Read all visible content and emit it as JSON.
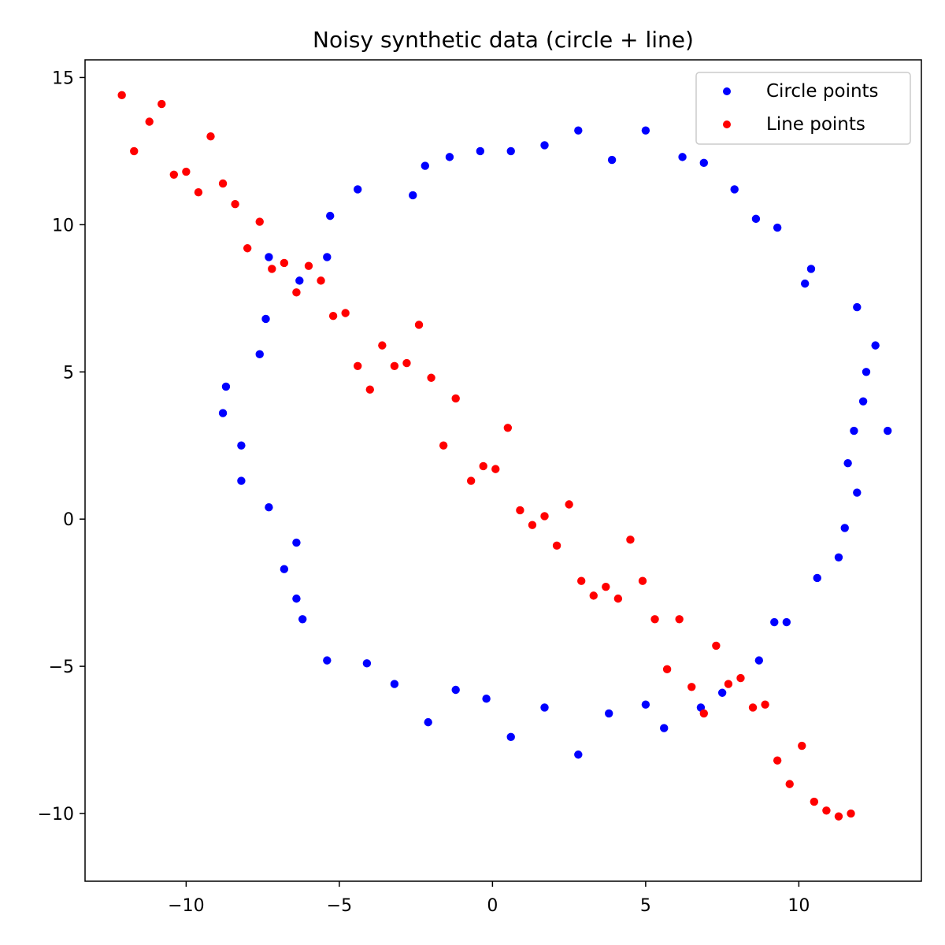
{
  "chart_data": {
    "type": "scatter",
    "title": "Noisy synthetic data (circle + line)",
    "xlabel": "",
    "ylabel": "",
    "xlim": [
      -13.3,
      14.0
    ],
    "ylim": [
      -12.3,
      15.6
    ],
    "xticks": [
      -10,
      -5,
      0,
      5,
      10
    ],
    "yticks": [
      -10,
      -5,
      0,
      5,
      10,
      15
    ],
    "xtick_labels": [
      "−10",
      "−5",
      "0",
      "5",
      "10"
    ],
    "ytick_labels": [
      "−10",
      "−5",
      "0",
      "5",
      "10",
      "15"
    ],
    "grid": false,
    "legend_position": "top-right",
    "series": [
      {
        "name": "Circle points",
        "color": "#0000ff",
        "points": [
          [
            12.9,
            3.0
          ],
          [
            12.5,
            5.9
          ],
          [
            12.2,
            5.0
          ],
          [
            12.1,
            4.0
          ],
          [
            11.9,
            7.2
          ],
          [
            11.8,
            3.0
          ],
          [
            11.9,
            0.9
          ],
          [
            11.6,
            1.9
          ],
          [
            11.5,
            -0.3
          ],
          [
            11.3,
            -1.3
          ],
          [
            10.6,
            -2.0
          ],
          [
            10.4,
            8.5
          ],
          [
            10.2,
            8.0
          ],
          [
            9.3,
            9.9
          ],
          [
            8.6,
            10.2
          ],
          [
            7.9,
            11.2
          ],
          [
            6.9,
            12.1
          ],
          [
            6.2,
            12.3
          ],
          [
            5.0,
            13.2
          ],
          [
            3.9,
            12.2
          ],
          [
            2.8,
            13.2
          ],
          [
            1.7,
            12.7
          ],
          [
            0.6,
            12.5
          ],
          [
            -0.4,
            12.5
          ],
          [
            -1.4,
            12.3
          ],
          [
            -2.2,
            12.0
          ],
          [
            -2.6,
            11.0
          ],
          [
            -4.4,
            11.2
          ],
          [
            -5.3,
            10.3
          ],
          [
            -5.4,
            8.9
          ],
          [
            -6.3,
            8.1
          ],
          [
            -7.3,
            8.9
          ],
          [
            -7.4,
            6.8
          ],
          [
            -7.6,
            5.6
          ],
          [
            -8.7,
            4.5
          ],
          [
            -8.8,
            3.6
          ],
          [
            -8.2,
            2.5
          ],
          [
            -8.2,
            1.3
          ],
          [
            -7.3,
            0.4
          ],
          [
            -6.4,
            -0.8
          ],
          [
            -6.8,
            -1.7
          ],
          [
            -6.4,
            -2.7
          ],
          [
            -6.2,
            -3.4
          ],
          [
            -5.4,
            -4.8
          ],
          [
            -4.1,
            -4.9
          ],
          [
            -3.2,
            -5.6
          ],
          [
            -2.1,
            -6.9
          ],
          [
            -1.2,
            -5.8
          ],
          [
            -0.2,
            -6.1
          ],
          [
            0.6,
            -7.4
          ],
          [
            1.7,
            -6.4
          ],
          [
            2.8,
            -8.0
          ],
          [
            3.8,
            -6.6
          ],
          [
            5.0,
            -6.3
          ],
          [
            5.6,
            -7.1
          ],
          [
            6.8,
            -6.4
          ],
          [
            7.5,
            -5.9
          ],
          [
            8.7,
            -4.8
          ],
          [
            9.2,
            -3.5
          ],
          [
            9.6,
            -3.5
          ]
        ]
      },
      {
        "name": "Line points",
        "color": "#ff0000",
        "points": [
          [
            -12.1,
            14.4
          ],
          [
            -11.7,
            12.5
          ],
          [
            -11.2,
            13.5
          ],
          [
            -10.8,
            14.1
          ],
          [
            -10.4,
            11.7
          ],
          [
            -10.0,
            11.8
          ],
          [
            -9.6,
            11.1
          ],
          [
            -9.2,
            13.0
          ],
          [
            -8.8,
            11.4
          ],
          [
            -8.4,
            10.7
          ],
          [
            -7.6,
            10.1
          ],
          [
            -8.0,
            9.2
          ],
          [
            -7.2,
            8.5
          ],
          [
            -6.8,
            8.7
          ],
          [
            -6.4,
            7.7
          ],
          [
            -6.0,
            8.6
          ],
          [
            -5.6,
            8.1
          ],
          [
            -5.2,
            6.9
          ],
          [
            -4.8,
            7.0
          ],
          [
            -4.4,
            5.2
          ],
          [
            -4.0,
            4.4
          ],
          [
            -3.6,
            5.9
          ],
          [
            -3.2,
            5.2
          ],
          [
            -2.8,
            5.3
          ],
          [
            -2.4,
            6.6
          ],
          [
            -2.0,
            4.8
          ],
          [
            -1.6,
            2.5
          ],
          [
            -1.2,
            4.1
          ],
          [
            -0.7,
            1.3
          ],
          [
            -0.3,
            1.8
          ],
          [
            0.1,
            1.7
          ],
          [
            0.5,
            3.1
          ],
          [
            0.9,
            0.3
          ],
          [
            1.3,
            -0.2
          ],
          [
            1.7,
            0.1
          ],
          [
            2.1,
            -0.9
          ],
          [
            2.5,
            0.5
          ],
          [
            2.9,
            -2.1
          ],
          [
            3.3,
            -2.6
          ],
          [
            3.7,
            -2.3
          ],
          [
            4.1,
            -2.7
          ],
          [
            4.5,
            -0.7
          ],
          [
            4.9,
            -2.1
          ],
          [
            5.3,
            -3.4
          ],
          [
            5.7,
            -5.1
          ],
          [
            6.1,
            -3.4
          ],
          [
            6.5,
            -5.7
          ],
          [
            6.9,
            -6.6
          ],
          [
            7.3,
            -4.3
          ],
          [
            7.7,
            -5.6
          ],
          [
            8.1,
            -5.4
          ],
          [
            8.5,
            -6.4
          ],
          [
            8.9,
            -6.3
          ],
          [
            9.3,
            -8.2
          ],
          [
            9.7,
            -9.0
          ],
          [
            10.1,
            -7.7
          ],
          [
            10.5,
            -9.6
          ],
          [
            10.9,
            -9.9
          ],
          [
            11.3,
            -10.1
          ],
          [
            11.7,
            -10.0
          ]
        ]
      }
    ]
  }
}
